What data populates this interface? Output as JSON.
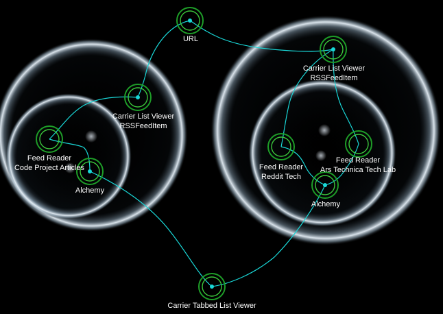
{
  "colors": {
    "background": "#000000",
    "connector": "#19d8d8",
    "node_ring": "#1e9e28",
    "node_ring_inner": "#4cdc4c",
    "label_text": "#ffffff"
  },
  "nodes": {
    "url": {
      "label": "URL"
    },
    "carrier_list_left": {
      "line1": "Carrier List Viewer",
      "line2": "RSSFeedItem"
    },
    "carrier_list_right": {
      "line1": "Carrier List Viewer",
      "line2": "RSSFeedItem"
    },
    "feed_reader_codeproject": {
      "line1": "Feed Reader",
      "line2": "Code Project Articles"
    },
    "alchemy_left": {
      "label": "Alchemy"
    },
    "feed_reader_reddit": {
      "line1": "Feed Reader",
      "line2": "Reddit Tech"
    },
    "feed_reader_arstechnica": {
      "line1": "Feed Reader",
      "line2": "Ars Technica Tech Lab"
    },
    "alchemy_right": {
      "label": "Alchemy"
    },
    "carrier_tabbed": {
      "label": "Carrier Tabbed List Viewer"
    }
  }
}
